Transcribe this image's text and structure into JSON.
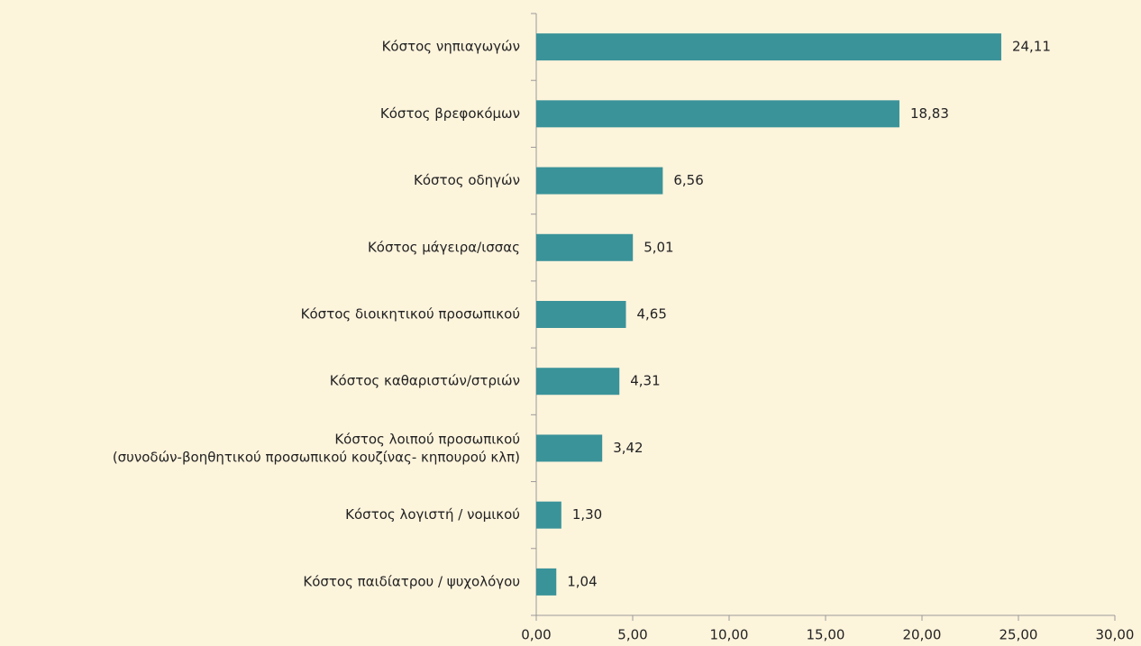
{
  "chart_data": {
    "type": "bar",
    "orientation": "horizontal",
    "color": "#3a9399",
    "categories": [
      "Κόστος νηπιαγωγών",
      "Κόστος βρεφοκόμων",
      "Κόστος οδηγών",
      "Κόστος μάγειρα/ισσας",
      "Κόστος διοικητικού προσωπικού",
      "Κόστος καθαριστών/στριών",
      "Κόστος λοιπού προσωπικού\n(συνοδών-βοηθητικού  προσωπικού κουζίνας- κηπουρού κλπ)",
      "Κόστος λογιστή / νομικού",
      "Κόστος παιδίατρου / ψυχολόγου"
    ],
    "values": [
      24.11,
      18.83,
      6.56,
      5.01,
      4.65,
      4.31,
      3.42,
      1.3,
      1.04
    ],
    "value_labels": [
      "24,11",
      "18,83",
      "6,56",
      "5,01",
      "4,65",
      "4,31",
      "3,42",
      "1,30",
      "1,04"
    ],
    "xlim": [
      0,
      30
    ],
    "xticks": [
      {
        "value": 0,
        "label": "0,00"
      },
      {
        "value": 5,
        "label": "5,00"
      },
      {
        "value": 10,
        "label": "10,00"
      },
      {
        "value": 15,
        "label": "15,00"
      },
      {
        "value": 20,
        "label": "20,00"
      },
      {
        "value": 25,
        "label": "25,00"
      },
      {
        "value": 30,
        "label": "30,00"
      }
    ],
    "grid": false
  }
}
